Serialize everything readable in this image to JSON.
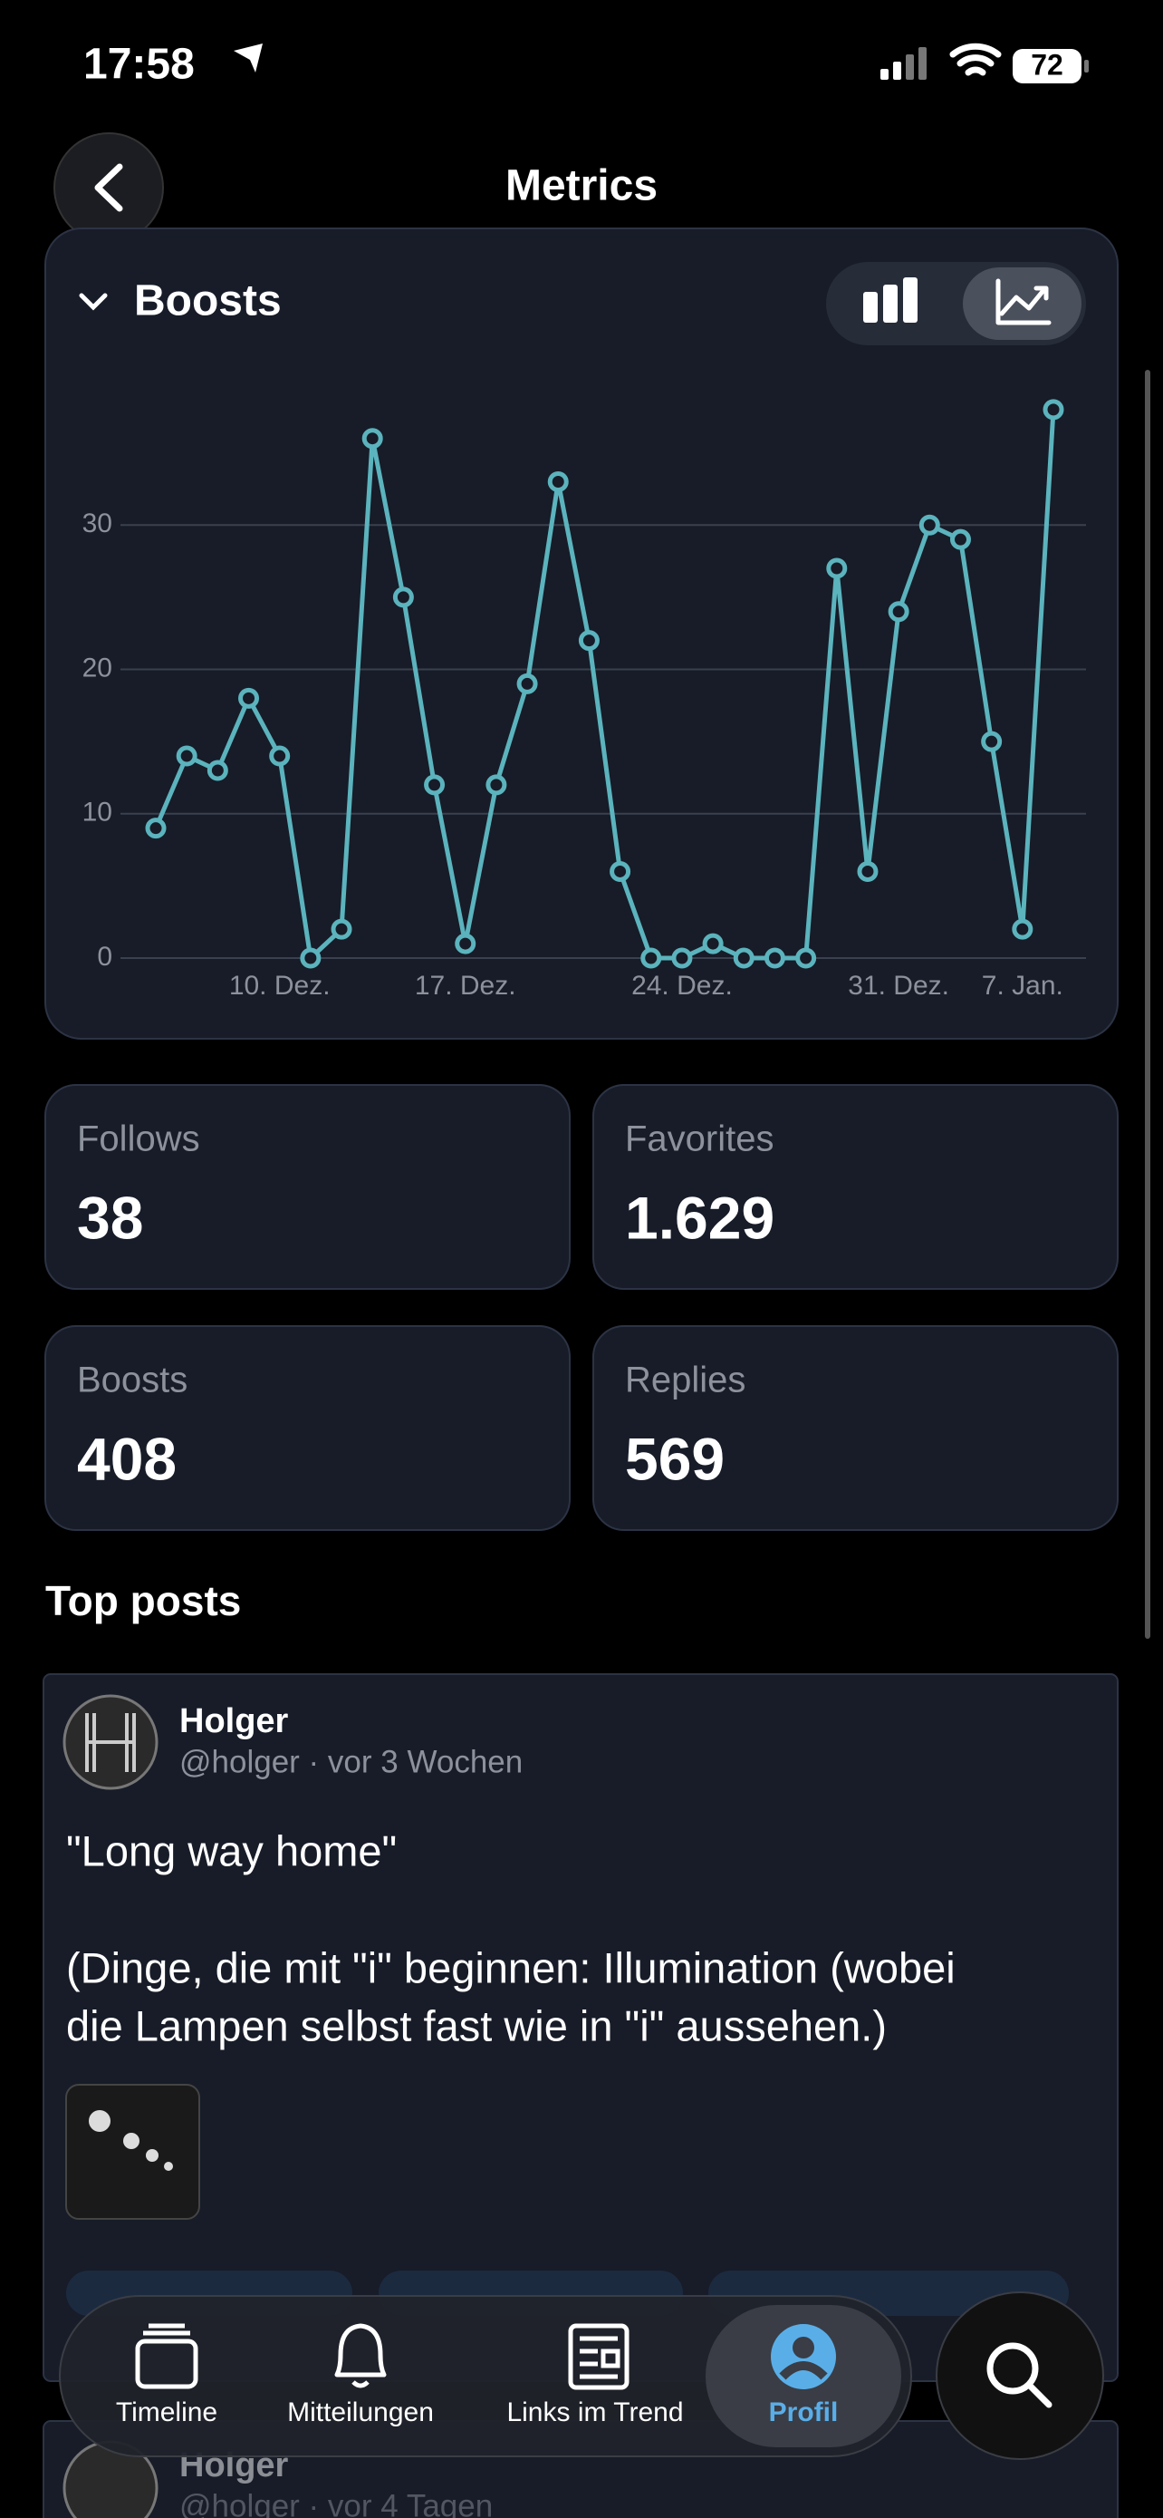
{
  "status_bar": {
    "time": "17:58",
    "battery": "72"
  },
  "header": {
    "title": "Metrics"
  },
  "chart_data": {
    "type": "line",
    "title": "Boosts",
    "categories": [
      null,
      null,
      null,
      null,
      "10. Dez.",
      null,
      null,
      null,
      null,
      null,
      "17. Dez.",
      null,
      null,
      null,
      null,
      null,
      null,
      "24. Dez.",
      null,
      null,
      null,
      null,
      null,
      null,
      "31. Dez.",
      null,
      null,
      null,
      "7. Jan.",
      null
    ],
    "values": [
      9,
      14,
      13,
      18,
      14,
      0,
      2,
      36,
      25,
      12,
      1,
      12,
      19,
      33,
      22,
      6,
      0,
      0,
      1,
      0,
      0,
      0,
      27,
      6,
      24,
      30,
      29,
      15,
      2,
      38
    ],
    "color": "#5bb3bd",
    "ylim": [
      0,
      40
    ],
    "yticks": [
      0,
      10,
      20,
      30
    ],
    "grid": true
  },
  "stats": [
    {
      "label": "Follows",
      "value": "38"
    },
    {
      "label": "Favorites",
      "value": "1.629"
    },
    {
      "label": "Boosts",
      "value": "408"
    },
    {
      "label": "Replies",
      "value": "569"
    }
  ],
  "top_posts": {
    "title": "Top posts",
    "posts": [
      {
        "name": "Holger",
        "handle": "@holger · vor 3 Wochen",
        "lines": [
          "\"Long way home\"",
          "(Dinge, die mit \"i\" beginnen: Illumination (wobei",
          "die Lampen selbst fast wie in \"i\" aussehen.)"
        ]
      },
      {
        "name": "Holger",
        "handle": "@holger · vor 4 Tagen"
      }
    ]
  },
  "tab_bar": {
    "tabs": [
      "Timeline",
      "Mitteilungen",
      "Links im Trend",
      "Profil"
    ]
  }
}
